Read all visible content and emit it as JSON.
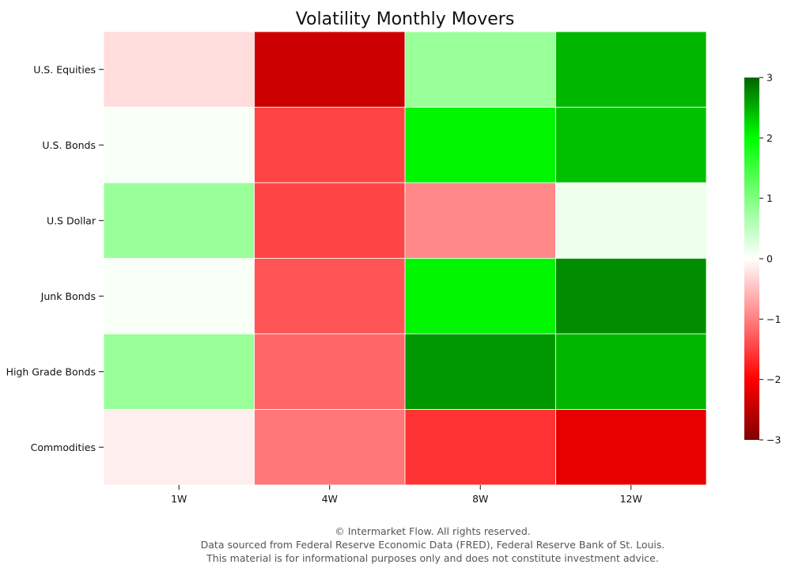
{
  "chart_data": {
    "type": "heatmap",
    "title": "Volatility Monthly Movers",
    "columns": [
      "1W",
      "4W",
      "8W",
      "12W"
    ],
    "rows": [
      "U.S. Equities",
      "U.S. Bonds",
      "U.S Dollar",
      "Junk Bonds",
      "High Grade Bonds",
      "Commodities"
    ],
    "values": [
      [
        -0.2,
        -2.1,
        0.6,
        2.2
      ],
      [
        0.05,
        -1.1,
        1.6,
        2.1
      ],
      [
        0.6,
        -1.1,
        -0.7,
        0.1
      ],
      [
        0.05,
        -1.0,
        1.6,
        2.6
      ],
      [
        0.6,
        -0.9,
        2.5,
        2.2
      ],
      [
        -0.1,
        -0.8,
        -1.2,
        -1.8
      ]
    ],
    "colorbar": {
      "min": -3,
      "max": 3,
      "ticks": [
        -3,
        -2,
        -1,
        0,
        1,
        2,
        3
      ],
      "tick_labels": [
        "−3",
        "−2",
        "−1",
        "0",
        "1",
        "2",
        "3"
      ]
    },
    "colormap": [
      "#800000",
      "#ff0000",
      "#ffffff",
      "#00ff00",
      "#006400"
    ],
    "grid": false,
    "legend": "right-colorbar"
  },
  "footer": {
    "line1": "© Intermarket Flow. All rights reserved.",
    "line2": "Data sourced from Federal Reserve Economic Data (FRED), Federal Reserve Bank of St. Louis.",
    "line3": "This material is for informational purposes only and does not constitute investment advice."
  }
}
